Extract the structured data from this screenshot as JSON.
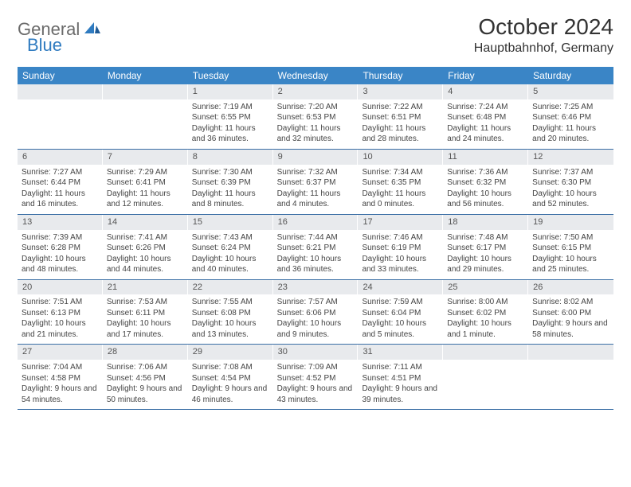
{
  "logo": {
    "text1": "General",
    "text2": "Blue"
  },
  "title": "October 2024",
  "location": "Hauptbahnhof, Germany",
  "colors": {
    "header_bg": "#3a85c6",
    "header_text": "#ffffff",
    "daynum_bg": "#e8eaed",
    "row_border": "#3a6ea5",
    "logo_gray": "#6b6b6b",
    "logo_blue": "#2f7bc0"
  },
  "weekdays": [
    "Sunday",
    "Monday",
    "Tuesday",
    "Wednesday",
    "Thursday",
    "Friday",
    "Saturday"
  ],
  "weeks": [
    [
      {
        "n": "",
        "sunrise": "",
        "sunset": "",
        "daylight": ""
      },
      {
        "n": "",
        "sunrise": "",
        "sunset": "",
        "daylight": ""
      },
      {
        "n": "1",
        "sunrise": "Sunrise: 7:19 AM",
        "sunset": "Sunset: 6:55 PM",
        "daylight": "Daylight: 11 hours and 36 minutes."
      },
      {
        "n": "2",
        "sunrise": "Sunrise: 7:20 AM",
        "sunset": "Sunset: 6:53 PM",
        "daylight": "Daylight: 11 hours and 32 minutes."
      },
      {
        "n": "3",
        "sunrise": "Sunrise: 7:22 AM",
        "sunset": "Sunset: 6:51 PM",
        "daylight": "Daylight: 11 hours and 28 minutes."
      },
      {
        "n": "4",
        "sunrise": "Sunrise: 7:24 AM",
        "sunset": "Sunset: 6:48 PM",
        "daylight": "Daylight: 11 hours and 24 minutes."
      },
      {
        "n": "5",
        "sunrise": "Sunrise: 7:25 AM",
        "sunset": "Sunset: 6:46 PM",
        "daylight": "Daylight: 11 hours and 20 minutes."
      }
    ],
    [
      {
        "n": "6",
        "sunrise": "Sunrise: 7:27 AM",
        "sunset": "Sunset: 6:44 PM",
        "daylight": "Daylight: 11 hours and 16 minutes."
      },
      {
        "n": "7",
        "sunrise": "Sunrise: 7:29 AM",
        "sunset": "Sunset: 6:41 PM",
        "daylight": "Daylight: 11 hours and 12 minutes."
      },
      {
        "n": "8",
        "sunrise": "Sunrise: 7:30 AM",
        "sunset": "Sunset: 6:39 PM",
        "daylight": "Daylight: 11 hours and 8 minutes."
      },
      {
        "n": "9",
        "sunrise": "Sunrise: 7:32 AM",
        "sunset": "Sunset: 6:37 PM",
        "daylight": "Daylight: 11 hours and 4 minutes."
      },
      {
        "n": "10",
        "sunrise": "Sunrise: 7:34 AM",
        "sunset": "Sunset: 6:35 PM",
        "daylight": "Daylight: 11 hours and 0 minutes."
      },
      {
        "n": "11",
        "sunrise": "Sunrise: 7:36 AM",
        "sunset": "Sunset: 6:32 PM",
        "daylight": "Daylight: 10 hours and 56 minutes."
      },
      {
        "n": "12",
        "sunrise": "Sunrise: 7:37 AM",
        "sunset": "Sunset: 6:30 PM",
        "daylight": "Daylight: 10 hours and 52 minutes."
      }
    ],
    [
      {
        "n": "13",
        "sunrise": "Sunrise: 7:39 AM",
        "sunset": "Sunset: 6:28 PM",
        "daylight": "Daylight: 10 hours and 48 minutes."
      },
      {
        "n": "14",
        "sunrise": "Sunrise: 7:41 AM",
        "sunset": "Sunset: 6:26 PM",
        "daylight": "Daylight: 10 hours and 44 minutes."
      },
      {
        "n": "15",
        "sunrise": "Sunrise: 7:43 AM",
        "sunset": "Sunset: 6:24 PM",
        "daylight": "Daylight: 10 hours and 40 minutes."
      },
      {
        "n": "16",
        "sunrise": "Sunrise: 7:44 AM",
        "sunset": "Sunset: 6:21 PM",
        "daylight": "Daylight: 10 hours and 36 minutes."
      },
      {
        "n": "17",
        "sunrise": "Sunrise: 7:46 AM",
        "sunset": "Sunset: 6:19 PM",
        "daylight": "Daylight: 10 hours and 33 minutes."
      },
      {
        "n": "18",
        "sunrise": "Sunrise: 7:48 AM",
        "sunset": "Sunset: 6:17 PM",
        "daylight": "Daylight: 10 hours and 29 minutes."
      },
      {
        "n": "19",
        "sunrise": "Sunrise: 7:50 AM",
        "sunset": "Sunset: 6:15 PM",
        "daylight": "Daylight: 10 hours and 25 minutes."
      }
    ],
    [
      {
        "n": "20",
        "sunrise": "Sunrise: 7:51 AM",
        "sunset": "Sunset: 6:13 PM",
        "daylight": "Daylight: 10 hours and 21 minutes."
      },
      {
        "n": "21",
        "sunrise": "Sunrise: 7:53 AM",
        "sunset": "Sunset: 6:11 PM",
        "daylight": "Daylight: 10 hours and 17 minutes."
      },
      {
        "n": "22",
        "sunrise": "Sunrise: 7:55 AM",
        "sunset": "Sunset: 6:08 PM",
        "daylight": "Daylight: 10 hours and 13 minutes."
      },
      {
        "n": "23",
        "sunrise": "Sunrise: 7:57 AM",
        "sunset": "Sunset: 6:06 PM",
        "daylight": "Daylight: 10 hours and 9 minutes."
      },
      {
        "n": "24",
        "sunrise": "Sunrise: 7:59 AM",
        "sunset": "Sunset: 6:04 PM",
        "daylight": "Daylight: 10 hours and 5 minutes."
      },
      {
        "n": "25",
        "sunrise": "Sunrise: 8:00 AM",
        "sunset": "Sunset: 6:02 PM",
        "daylight": "Daylight: 10 hours and 1 minute."
      },
      {
        "n": "26",
        "sunrise": "Sunrise: 8:02 AM",
        "sunset": "Sunset: 6:00 PM",
        "daylight": "Daylight: 9 hours and 58 minutes."
      }
    ],
    [
      {
        "n": "27",
        "sunrise": "Sunrise: 7:04 AM",
        "sunset": "Sunset: 4:58 PM",
        "daylight": "Daylight: 9 hours and 54 minutes."
      },
      {
        "n": "28",
        "sunrise": "Sunrise: 7:06 AM",
        "sunset": "Sunset: 4:56 PM",
        "daylight": "Daylight: 9 hours and 50 minutes."
      },
      {
        "n": "29",
        "sunrise": "Sunrise: 7:08 AM",
        "sunset": "Sunset: 4:54 PM",
        "daylight": "Daylight: 9 hours and 46 minutes."
      },
      {
        "n": "30",
        "sunrise": "Sunrise: 7:09 AM",
        "sunset": "Sunset: 4:52 PM",
        "daylight": "Daylight: 9 hours and 43 minutes."
      },
      {
        "n": "31",
        "sunrise": "Sunrise: 7:11 AM",
        "sunset": "Sunset: 4:51 PM",
        "daylight": "Daylight: 9 hours and 39 minutes."
      },
      {
        "n": "",
        "sunrise": "",
        "sunset": "",
        "daylight": ""
      },
      {
        "n": "",
        "sunrise": "",
        "sunset": "",
        "daylight": ""
      }
    ]
  ]
}
